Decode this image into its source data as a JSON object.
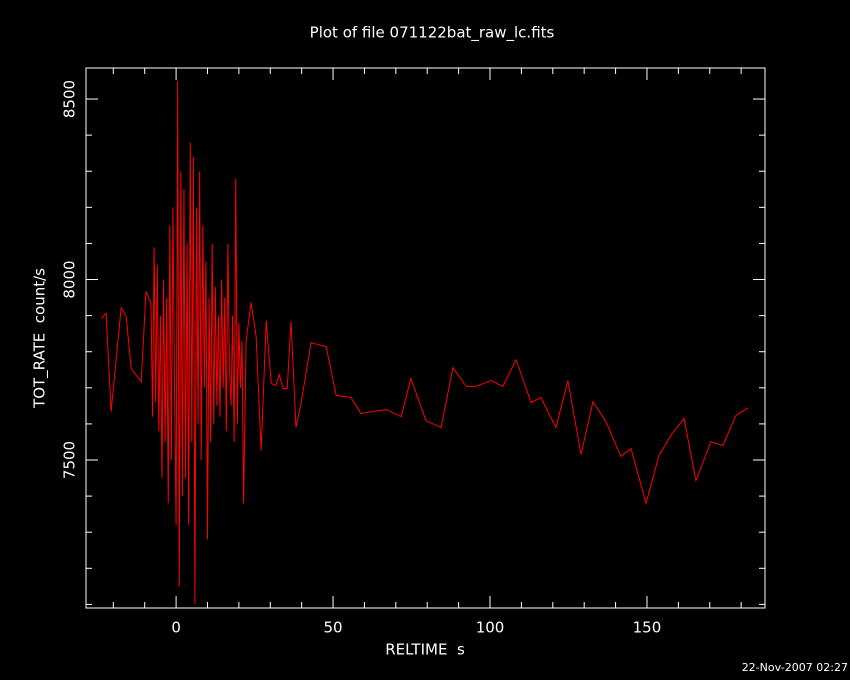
{
  "chart_data": {
    "type": "line",
    "title": "Plot of file 071122bat_raw_lc.fits",
    "xlabel": "RELTIME  s",
    "ylabel": "TOT_RATE  count/s",
    "timestamp": "22-Nov-2007 02:27",
    "color": "#ff0000",
    "xlim": [
      -28.7,
      187.6
    ],
    "ylim": [
      7090,
      8586
    ],
    "xticks": [
      0,
      50,
      100,
      150
    ],
    "yticks": [
      7500,
      8000,
      8500
    ],
    "xminorticks": [
      -20,
      -10,
      10,
      20,
      30,
      40,
      60,
      70,
      80,
      90,
      110,
      120,
      130,
      140,
      160,
      170,
      180
    ],
    "yminorticks": [
      7100,
      7200,
      7300,
      7400,
      7600,
      7700,
      7800,
      7900,
      8100,
      8200,
      8300,
      8400
    ],
    "x": [
      -23.9,
      -22.3,
      -20.7,
      -17.5,
      -15.9,
      -14.3,
      -11.1,
      -9.6,
      -8.0,
      -7.5,
      -7,
      -6.5,
      -6,
      -5.5,
      -5,
      -4.5,
      -4,
      -3.5,
      -3,
      -2.5,
      -2,
      -1.5,
      -1,
      -0.5,
      0,
      0.5,
      1,
      1.5,
      2,
      2.5,
      3,
      3.5,
      4,
      4.5,
      5,
      5.5,
      6,
      6.5,
      7,
      7.5,
      8,
      8.5,
      9,
      9.5,
      10,
      10.5,
      11,
      11.5,
      12,
      12.5,
      13,
      13.5,
      14,
      14.5,
      15,
      15.5,
      16,
      16.5,
      17,
      17.5,
      18,
      18.5,
      19,
      19.5,
      20,
      20.5,
      21,
      21.5,
      22.3,
      23.9,
      25.5,
      27.1,
      28.7,
      30.3,
      31.8,
      32.8,
      34.1,
      35.4,
      36.6,
      38.2,
      39.8,
      43.0,
      47.8,
      51.0,
      55.7,
      58.9,
      66.9,
      71.7,
      74.8,
      79.6,
      84.4,
      88.2,
      92.4,
      95.5,
      100.3,
      104.1,
      108.3,
      113.1,
      116.2,
      121.0,
      124.8,
      129.0,
      132.8,
      136.9,
      141.7,
      144.9,
      149.7,
      153.8,
      157.6,
      161.8,
      165.6,
      170.4,
      174.2,
      178.3,
      182.2
    ],
    "values": [
      7892,
      7906,
      7634,
      7922,
      7898,
      7753,
      7717,
      7967,
      7934,
      7620,
      8090,
      7660,
      8040,
      7580,
      7900,
      7450,
      8000,
      7550,
      7950,
      7380,
      8150,
      7500,
      8200,
      7700,
      7320,
      8550,
      7150,
      8300,
      7400,
      8250,
      7450,
      8100,
      7320,
      8380,
      7550,
      8340,
      7100,
      8200,
      7600,
      8300,
      7500,
      8150,
      7700,
      8050,
      7280,
      7950,
      7550,
      8100,
      7600,
      7980,
      7650,
      7900,
      7620,
      8000,
      7700,
      7950,
      7580,
      8100,
      7750,
      7650,
      7900,
      7550,
      8280,
      7600,
      7880,
      7700,
      7830,
      7380,
      7831,
      7936,
      7842,
      7526,
      7886,
      7712,
      7706,
      7737,
      7698,
      7698,
      7884,
      7590,
      7657,
      7825,
      7814,
      7679,
      7673,
      7629,
      7640,
      7620,
      7726,
      7609,
      7590,
      7756,
      7704,
      7704,
      7720,
      7704,
      7778,
      7659,
      7673,
      7590,
      7720,
      7515,
      7662,
      7607,
      7510,
      7532,
      7380,
      7512,
      7568,
      7615,
      7443,
      7551,
      7540,
      7623,
      7645
    ]
  }
}
